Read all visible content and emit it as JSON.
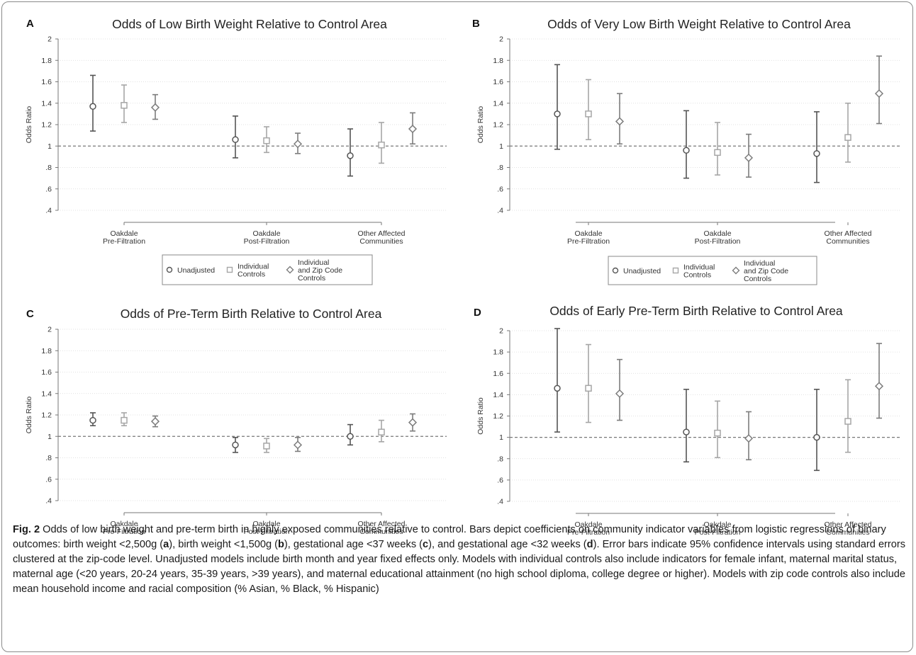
{
  "panels": [
    {
      "letter": "A",
      "chart_data": {
        "type": "scatter",
        "title": "Odds of Low Birth Weight Relative to Control Area",
        "ylabel": "Odds Ratio",
        "ylim": [
          0.4,
          2
        ],
        "yticks": [
          ".4",
          ".6",
          ".8",
          "1",
          "1.2",
          "1.4",
          "1.6",
          "1.8",
          "2"
        ],
        "reference_line": 1,
        "grid": "horizontal dotted",
        "categories": [
          [
            "Oakdale",
            "Pre-Filtration"
          ],
          [
            "Oakdale",
            "Post-Filtration"
          ],
          [
            "Other Affected",
            "Communities"
          ]
        ],
        "series": [
          {
            "name": "Unadjusted",
            "marker": "circle",
            "values": [
              1.37,
              1.06,
              0.91
            ],
            "ci_low": [
              1.14,
              0.89,
              0.72
            ],
            "ci_high": [
              1.66,
              1.28,
              1.16
            ]
          },
          {
            "name": "Individual Controls",
            "marker": "square",
            "values": [
              1.38,
              1.05,
              1.01
            ],
            "ci_low": [
              1.22,
              0.94,
              0.84
            ],
            "ci_high": [
              1.57,
              1.18,
              1.22
            ]
          },
          {
            "name": "Individual and Zip Code Controls",
            "marker": "diamond",
            "values": [
              1.36,
              1.02,
              1.16
            ],
            "ci_low": [
              1.25,
              0.93,
              1.02
            ],
            "ci_high": [
              1.48,
              1.12,
              1.31
            ]
          }
        ],
        "legend": {
          "placement": "bottom",
          "entries": [
            [
              "Unadjusted"
            ],
            [
              "Individual",
              "Controls"
            ],
            [
              "Individual",
              "and Zip Code",
              "Controls"
            ]
          ]
        }
      }
    },
    {
      "letter": "B",
      "chart_data": {
        "type": "scatter",
        "title": "Odds of Very Low Birth Weight Relative to Control Area",
        "ylabel": "Odds Ratio",
        "ylim": [
          0.4,
          2
        ],
        "yticks": [
          ".4",
          ".6",
          ".8",
          "1",
          "1.2",
          "1.4",
          "1.6",
          "1.8",
          "2"
        ],
        "reference_line": 1,
        "grid": "horizontal dotted",
        "categories": [
          [
            "Oakdale",
            "Pre-Filtration"
          ],
          [
            "Oakdale",
            "Post-Filtration"
          ],
          [
            "Other Affected",
            "Communities"
          ]
        ],
        "series": [
          {
            "name": "Unadjusted",
            "marker": "circle",
            "values": [
              1.3,
              0.96,
              0.93
            ],
            "ci_low": [
              0.97,
              0.7,
              0.66
            ],
            "ci_high": [
              1.76,
              1.33,
              1.32
            ]
          },
          {
            "name": "Individual Controls",
            "marker": "square",
            "values": [
              1.3,
              0.94,
              1.08
            ],
            "ci_low": [
              1.06,
              0.73,
              0.85
            ],
            "ci_high": [
              1.62,
              1.22,
              1.4
            ]
          },
          {
            "name": "Individual and Zip Code Controls",
            "marker": "diamond",
            "values": [
              1.23,
              0.89,
              1.49
            ],
            "ci_low": [
              1.02,
              0.71,
              1.21
            ],
            "ci_high": [
              1.49,
              1.11,
              1.84
            ]
          }
        ],
        "legend": {
          "placement": "bottom",
          "entries": [
            [
              "Unadjusted"
            ],
            [
              "Individual",
              "Controls"
            ],
            [
              "Individual",
              "and Zip Code",
              "Controls"
            ]
          ]
        }
      }
    },
    {
      "letter": "C",
      "chart_data": {
        "type": "scatter",
        "title": "Odds of Pre-Term Birth Relative to Control Area",
        "ylabel": "Odds Ratio",
        "ylim": [
          0.4,
          2
        ],
        "yticks": [
          ".4",
          ".6",
          ".8",
          "1",
          "1.2",
          "1.4",
          "1.6",
          "1.8",
          "2"
        ],
        "reference_line": 1,
        "grid": "horizontal dotted",
        "categories": [
          [
            "Oakdale",
            "Pre-Filtration"
          ],
          [
            "Oakdale",
            "Post-Filtration"
          ],
          [
            "Other Affected",
            "Communities"
          ]
        ],
        "series": [
          {
            "name": "Unadjusted",
            "marker": "circle",
            "values": [
              1.15,
              0.92,
              1.0
            ],
            "ci_low": [
              1.1,
              0.85,
              0.92
            ],
            "ci_high": [
              1.22,
              0.99,
              1.11
            ]
          },
          {
            "name": "Individual Controls",
            "marker": "square",
            "values": [
              1.15,
              0.91,
              1.04
            ],
            "ci_low": [
              1.1,
              0.85,
              0.95
            ],
            "ci_high": [
              1.22,
              0.98,
              1.15
            ]
          },
          {
            "name": "Individual and Zip Code Controls",
            "marker": "diamond",
            "values": [
              1.14,
              0.92,
              1.13
            ],
            "ci_low": [
              1.09,
              0.86,
              1.05
            ],
            "ci_high": [
              1.19,
              0.99,
              1.21
            ]
          }
        ]
      }
    },
    {
      "letter": "D",
      "chart_data": {
        "type": "scatter",
        "title": "Odds of Early Pre-Term Birth Relative to Control Area",
        "ylabel": "Odds Ratio",
        "ylim": [
          0.4,
          2
        ],
        "yticks": [
          ".4",
          ".6",
          ".8",
          "1",
          "1.2",
          "1.4",
          "1.6",
          "1.8",
          "2"
        ],
        "reference_line": 1,
        "grid": "horizontal dotted",
        "categories": [
          [
            "Oakdale",
            "Pre-Filtration"
          ],
          [
            "Oakdale",
            "Post-Filtration"
          ],
          [
            "Other Affected",
            "Communities"
          ]
        ],
        "series": [
          {
            "name": "Unadjusted",
            "marker": "circle",
            "values": [
              1.46,
              1.05,
              1.0
            ],
            "ci_low": [
              1.05,
              0.77,
              0.69
            ],
            "ci_high": [
              2.02,
              1.45,
              1.45
            ]
          },
          {
            "name": "Individual Controls",
            "marker": "square",
            "values": [
              1.46,
              1.04,
              1.15
            ],
            "ci_low": [
              1.14,
              0.81,
              0.86
            ],
            "ci_high": [
              1.87,
              1.34,
              1.54
            ]
          },
          {
            "name": "Individual and Zip Code Controls",
            "marker": "diamond",
            "values": [
              1.41,
              0.99,
              1.48
            ],
            "ci_low": [
              1.16,
              0.79,
              1.18
            ],
            "ci_high": [
              1.73,
              1.24,
              1.88
            ]
          }
        ]
      }
    }
  ],
  "series_colors": [
    "#555555",
    "#a6a6a6",
    "#7d7d7d"
  ],
  "caption": {
    "label": "Fig. 2",
    "title": " Odds of low birth weight and pre-term birth in highly exposed communities relative to control. Bars depict coefficients on community indicator variables from logistic regressions of binary outcomes: birth weight <2,500g (",
    "seg1": "), birth weight <1,500g (",
    "seg2": "), gestational age <37 weeks (",
    "seg3": "), and gestational age <32 weeks (",
    "seg4": "). Error bars indicate 95% confidence intervals using standard errors clustered at the zip-code level. Unadjusted models include birth month and year fixed effects only. Models with individual controls also include indicators for female infant, maternal marital status, maternal age (<20 years, 20-24 years, 35-39 years, >39 years), and maternal educational attainment (no high school diploma, college degree or higher). Models with zip code controls also include mean household income and racial composition (% Asian, % Black, % Hispanic)",
    "ref_a": "a",
    "ref_b": "b",
    "ref_c": "c",
    "ref_d": "d"
  }
}
